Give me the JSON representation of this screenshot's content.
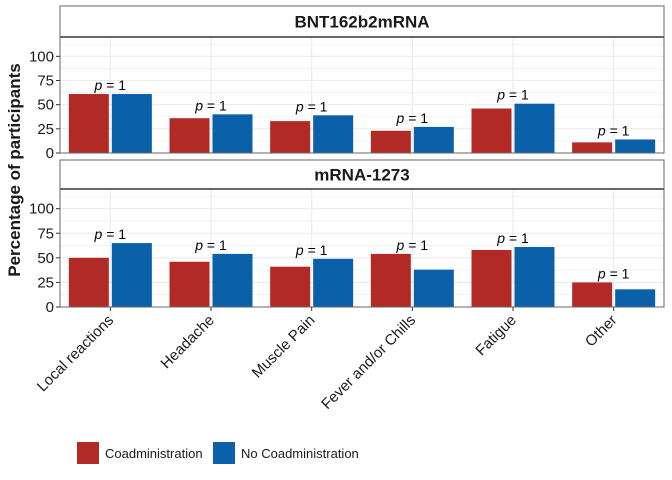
{
  "chart_data": {
    "type": "bar",
    "ylabel": "Percentage of participants",
    "xlabel": "",
    "ylim": [
      0,
      120
    ],
    "yticks": [
      0,
      25,
      50,
      75,
      100
    ],
    "categories": [
      "Local reactions",
      "Headache",
      "Muscle Pain",
      "Fever and/or Chills",
      "Fatigue",
      "Other"
    ],
    "legend_position": "bottom",
    "colors": {
      "coadmin": "#B22A25",
      "no_coadmin": "#0B60AA",
      "panel_border": "#666666",
      "grid": "#EBEBEB",
      "strip_bg": "#FFFFFF"
    },
    "legend": [
      "Coadministration",
      "No Coadministration"
    ],
    "panels": [
      {
        "title": "BNT162b2mRNA",
        "series": [
          {
            "name": "Coadministration",
            "values": [
              61,
              36,
              33,
              23,
              46,
              11
            ]
          },
          {
            "name": "No Coadministration",
            "values": [
              61,
              40,
              39,
              27,
              51,
              14
            ]
          }
        ],
        "p_labels": [
          "p = 1",
          "p = 1",
          "p = 1",
          "p = 1",
          "p = 1",
          "p = 1"
        ]
      },
      {
        "title": "mRNA-1273",
        "series": [
          {
            "name": "Coadministration",
            "values": [
              50,
              46,
              41,
              54,
              58,
              25
            ]
          },
          {
            "name": "No Coadministration",
            "values": [
              65,
              54,
              49,
              38,
              61,
              18
            ]
          }
        ],
        "p_labels": [
          "p = 1",
          "p = 1",
          "p = 1",
          "p = 1",
          "p = 1",
          "p = 1"
        ]
      }
    ]
  }
}
